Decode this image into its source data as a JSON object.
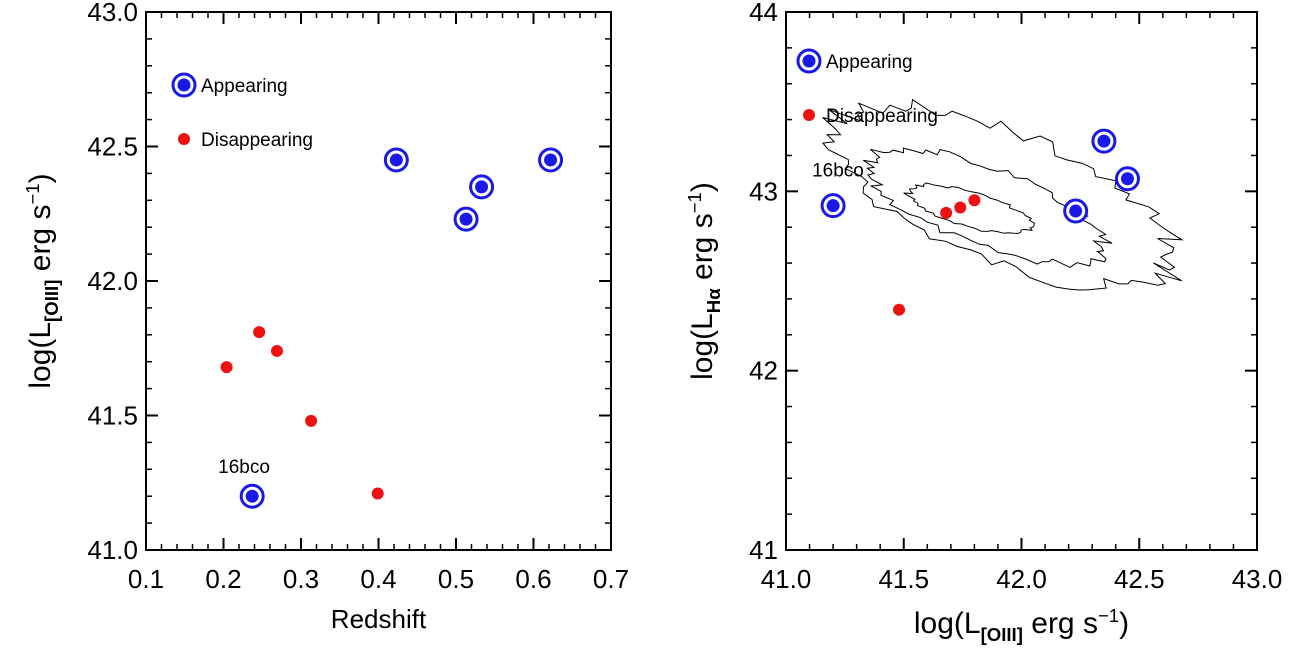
{
  "colors": {
    "appearing": "#1a1ae6",
    "disappearing": "#ee1111",
    "axis": "#000000"
  },
  "chart_data": [
    {
      "type": "scatter",
      "xlabel": "Redshift",
      "ylabel": {
        "prefix": "log(L",
        "sub": "[OIII]",
        "suffix": " erg s",
        "sup": "−1",
        "close": ")"
      },
      "xlim": [
        0.1,
        0.7
      ],
      "ylim": [
        41.0,
        43.0
      ],
      "x_ticks": [
        "0.1",
        "0.2",
        "0.3",
        "0.4",
        "0.5",
        "0.6",
        "0.7"
      ],
      "y_ticks": [
        "41.0",
        "41.5",
        "42.0",
        "42.5",
        "43.0"
      ],
      "legend": {
        "placement": "top-left",
        "appearing": "Appearing",
        "disappearing": "Disappearing"
      },
      "annotation": {
        "text": "16bco"
      },
      "series": [
        {
          "name": "Appearing",
          "marker": "ringed-circle",
          "points": [
            [
              0.237,
              41.2
            ],
            [
              0.423,
              42.45
            ],
            [
              0.513,
              42.23
            ],
            [
              0.533,
              42.35
            ],
            [
              0.622,
              42.45
            ]
          ]
        },
        {
          "name": "Disappearing",
          "marker": "dot",
          "points": [
            [
              0.204,
              41.68
            ],
            [
              0.246,
              41.81
            ],
            [
              0.269,
              41.74
            ],
            [
              0.313,
              41.48
            ],
            [
              0.399,
              41.21
            ]
          ]
        }
      ]
    },
    {
      "type": "scatter",
      "xlabel": {
        "prefix": "log(L",
        "sub": "[OIII]",
        "suffix": " erg s",
        "sup": "−1",
        "close": ")"
      },
      "ylabel": {
        "prefix": "log(L",
        "sub": "Hα",
        "suffix": " erg s",
        "sup": "−1",
        "close": ")"
      },
      "xlim": [
        41.0,
        43.0
      ],
      "ylim": [
        41.0,
        44.0
      ],
      "x_ticks": [
        "41.0",
        "41.5",
        "42.0",
        "42.5",
        "43.0"
      ],
      "y_ticks": [
        "41",
        "42",
        "43",
        "44"
      ],
      "legend": {
        "placement": "top-left",
        "appearing": "Appearing",
        "disappearing": "Disappearing"
      },
      "annotation": {
        "text": "16bco"
      },
      "background": "density-contours",
      "series": [
        {
          "name": "Appearing",
          "marker": "ringed-circle",
          "points": [
            [
              41.2,
              42.92
            ],
            [
              42.23,
              42.89
            ],
            [
              42.35,
              43.28
            ],
            [
              42.45,
              43.07
            ]
          ]
        },
        {
          "name": "Disappearing",
          "marker": "dot",
          "points": [
            [
              41.48,
              42.34
            ],
            [
              41.68,
              42.88
            ],
            [
              41.74,
              42.91
            ],
            [
              41.8,
              42.95
            ]
          ]
        }
      ]
    }
  ]
}
